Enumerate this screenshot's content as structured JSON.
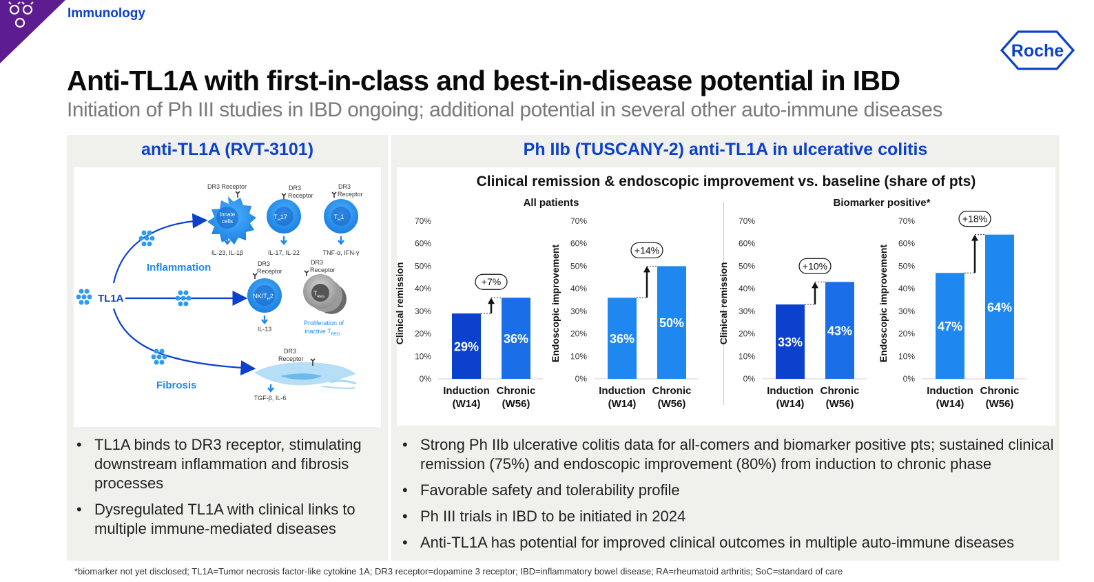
{
  "header": {
    "section_label": "Immunology",
    "title": "Anti-TL1A with first-in-class and best-in-disease potential in IBD",
    "subtitle": "Initiation of Ph III studies in IBD ongoing; additional potential in several other auto-immune diseases",
    "logo_text": "Roche",
    "colors": {
      "accent": "#0b41cd",
      "corner": "#5e1c91"
    }
  },
  "left_panel": {
    "title": "anti-TL1A (RVT-3101)",
    "diagram": {
      "source": "TL1A",
      "branches": {
        "inflammation": "Inflammation",
        "fibrosis": "Fibrosis"
      },
      "receptor": "DR3 Receptor",
      "receptor_line1": "DR3",
      "receptor_line2": "Receptor",
      "innate_line1": "Innate",
      "innate_line2": "cells",
      "th17": "T",
      "th17_sub": "H",
      "th17_num": "17",
      "th1": "T",
      "th1_sub": "H",
      "th1_num": "1",
      "nk": "NK/T",
      "nk_sub": "H",
      "nk_num": "2",
      "treg": "T",
      "treg_sub": "REG",
      "cytokines_innate": "IL-23, IL-1β",
      "cytokines_th17": "IL-17, IL-22",
      "cytokines_th1": "TNF-α, IFN-γ",
      "cytokines_nk": "IL-13",
      "cytokines_fibro": "TGF-β, IL-6",
      "prolif_line1": "Proliferation of",
      "prolif_line2": "inactive T",
      "prolif_sub": "REG"
    },
    "bullets": [
      "TL1A binds to DR3 receptor, stimulating downstream inflammation and fibrosis processes",
      "Dysregulated TL1A with clinical links to multiple immune-mediated diseases"
    ]
  },
  "right_panel": {
    "title": "Ph IIb (TUSCANY-2) anti-TL1A in ulcerative colitis",
    "bullets": [
      "Strong Ph IIb ulcerative colitis data for all-comers and biomarker positive pts; sustained clinical remission (75%) and endoscopic improvement (80%) from induction to chronic phase",
      "Favorable safety and tolerability profile",
      "Ph III trials in IBD to be initiated in 2024",
      "Anti-TL1A has potential for improved clinical outcomes in multiple auto-immune diseases"
    ]
  },
  "chart_data": {
    "type": "bar",
    "title": "Clinical remission & endoscopic improvement vs. baseline (share of pts)",
    "groups": [
      "All patients",
      "Biomarker positive*"
    ],
    "category_lines": [
      [
        "Induction",
        "(W14)"
      ],
      [
        "Chronic",
        "(W56)"
      ]
    ],
    "ylim": [
      0,
      70
    ],
    "yticks": [
      "0%",
      "10%",
      "20%",
      "30%",
      "40%",
      "50%",
      "60%",
      "70%"
    ],
    "panels": [
      {
        "group": 0,
        "ylabel": "Clinical remission",
        "values": [
          29,
          36
        ],
        "labels": [
          "29%",
          "36%"
        ],
        "delta": "+7%",
        "colors": [
          "#0b41cd",
          "#1a6fe8"
        ]
      },
      {
        "group": 0,
        "ylabel": "Endoscopic improvement",
        "values": [
          36,
          50
        ],
        "labels": [
          "36%",
          "50%"
        ],
        "delta": "+14%",
        "colors": [
          "#1e88f0",
          "#1e88f0"
        ]
      },
      {
        "group": 1,
        "ylabel": "Clinical remission",
        "values": [
          33,
          43
        ],
        "labels": [
          "33%",
          "43%"
        ],
        "delta": "+10%",
        "colors": [
          "#0b41cd",
          "#1a6fe8"
        ]
      },
      {
        "group": 1,
        "ylabel": "Endoscopic improvement",
        "values": [
          47,
          64
        ],
        "labels": [
          "47%",
          "64%"
        ],
        "delta": "+18%",
        "colors": [
          "#1e88f0",
          "#1e88f0"
        ]
      }
    ]
  },
  "footnote": "*biomarker not yet disclosed; TL1A=Tumor necrosis factor-like cytokine 1A; DR3 receptor=dopamine 3 receptor; IBD=inflammatory bowel disease; RA=rheumatoid arthritis; SoC=standard of care"
}
